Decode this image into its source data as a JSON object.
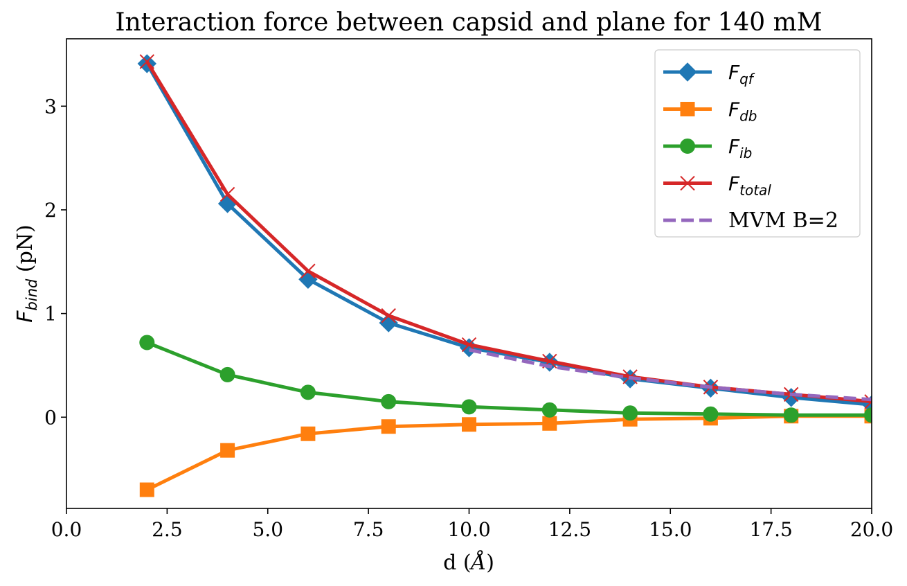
{
  "chart_data": {
    "type": "line",
    "title": "Interaction force between capsid and plane for 140 mM",
    "xlabel": {
      "main": "d (",
      "sym": "Å",
      "close": ")"
    },
    "ylabel": {
      "sym": "F",
      "sub": "bind",
      "unit": " (pN)"
    },
    "xlim": [
      0,
      20
    ],
    "ylim": [
      -0.88,
      3.65
    ],
    "xticks": [
      0,
      2.5,
      5,
      7.5,
      10,
      12.5,
      15,
      17.5,
      20
    ],
    "xtick_labels": [
      "0.0",
      "2.5",
      "5.0",
      "7.5",
      "10.0",
      "12.5",
      "15.0",
      "17.5",
      "20.0"
    ],
    "yticks": [
      0,
      1,
      2,
      3
    ],
    "ytick_labels": [
      "0",
      "1",
      "2",
      "3"
    ],
    "grid": false,
    "legend_position": "top-right",
    "series": [
      {
        "key": "qf",
        "label_sym": "F",
        "label_sub": "qf",
        "color": "#1f77b4",
        "marker": "diamond",
        "dashed": false,
        "x": [
          2,
          4,
          6,
          8,
          10,
          12,
          14,
          16,
          18,
          20
        ],
        "y": [
          3.41,
          2.06,
          1.33,
          0.91,
          0.67,
          0.53,
          0.37,
          0.28,
          0.19,
          0.12
        ]
      },
      {
        "key": "db",
        "label_sym": "F",
        "label_sub": "db",
        "color": "#ff7f0e",
        "marker": "square",
        "dashed": false,
        "x": [
          2,
          4,
          6,
          8,
          10,
          12,
          14,
          16,
          18,
          20
        ],
        "y": [
          -0.7,
          -0.32,
          -0.16,
          -0.09,
          -0.07,
          -0.06,
          -0.02,
          -0.01,
          0.01,
          0.01
        ]
      },
      {
        "key": "ib",
        "label_sym": "F",
        "label_sub": "ib",
        "color": "#2ca02c",
        "marker": "circle",
        "dashed": false,
        "x": [
          2,
          4,
          6,
          8,
          10,
          12,
          14,
          16,
          18,
          20
        ],
        "y": [
          0.72,
          0.41,
          0.24,
          0.15,
          0.1,
          0.07,
          0.04,
          0.03,
          0.02,
          0.02
        ]
      },
      {
        "key": "total",
        "label_sym": "F",
        "label_sub": "total",
        "color": "#d62728",
        "marker": "x",
        "dashed": false,
        "x": [
          2,
          4,
          6,
          8,
          10,
          12,
          14,
          16,
          18,
          20
        ],
        "y": [
          3.43,
          2.15,
          1.41,
          0.98,
          0.7,
          0.54,
          0.39,
          0.29,
          0.22,
          0.15
        ]
      },
      {
        "key": "mvm",
        "label_text": "MVM B=2",
        "color": "#9467bd",
        "marker": "none",
        "dashed": true,
        "x": [
          10,
          12,
          14,
          16,
          18,
          20
        ],
        "y": [
          0.65,
          0.49,
          0.38,
          0.29,
          0.22,
          0.17
        ]
      }
    ]
  }
}
